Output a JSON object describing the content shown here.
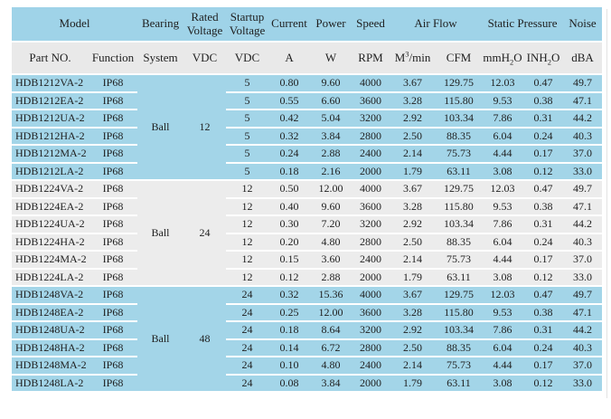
{
  "colors": {
    "header_blue": "#9fd3e8",
    "row_blue": "#a3d5e8",
    "row_gray": "#ececec",
    "header_gray": "#e9e9e9",
    "text": "#1f1f1f"
  },
  "header": {
    "row1": {
      "model": "Model",
      "bearing": "Bearing",
      "rated_voltage": "Rated Voltage",
      "startup_voltage": "Startup Voltage",
      "current": "Current",
      "power": "Power",
      "speed": "Speed",
      "air_flow": "Air Flow",
      "static_pressure": "Static Pressure",
      "noise": "Noise"
    },
    "row2": {
      "part_no": "Part NO.",
      "function": "Function",
      "system": "System",
      "rated_vdc": "VDC",
      "startup_vdc": "VDC",
      "current_a": "A",
      "power_w": "W",
      "speed_rpm": "RPM",
      "m3min": {
        "base": "M",
        "sup": "3",
        "rest": "/min"
      },
      "cfm": "CFM",
      "mmh2o": {
        "base": "mmH",
        "sub": "2",
        "rest": "O"
      },
      "inh2o": {
        "base": "INH",
        "sub": "2",
        "rest": "O"
      },
      "dba": "dBA"
    }
  },
  "groups": [
    {
      "bearing_system": "Ball",
      "rated_voltage": "12",
      "tone": "blue",
      "rows": [
        {
          "part_no": "HDB1212VA-2",
          "function": "IP68",
          "startup_voltage": "5",
          "current": "0.80",
          "power": "9.60",
          "speed": "4000",
          "airflow_m3min": "3.67",
          "airflow_cfm": "129.75",
          "pressure_mmh2o": "12.03",
          "pressure_inh2o": "0.47",
          "noise_dba": "49.7"
        },
        {
          "part_no": "HDB1212EA-2",
          "function": "IP68",
          "startup_voltage": "5",
          "current": "0.55",
          "power": "6.60",
          "speed": "3600",
          "airflow_m3min": "3.28",
          "airflow_cfm": "115.80",
          "pressure_mmh2o": "9.53",
          "pressure_inh2o": "0.38",
          "noise_dba": "47.1"
        },
        {
          "part_no": "HDB1212UA-2",
          "function": "IP68",
          "startup_voltage": "5",
          "current": "0.42",
          "power": "5.04",
          "speed": "3200",
          "airflow_m3min": "2.92",
          "airflow_cfm": "103.34",
          "pressure_mmh2o": "7.86",
          "pressure_inh2o": "0.31",
          "noise_dba": "44.2"
        },
        {
          "part_no": "HDB1212HA-2",
          "function": "IP68",
          "startup_voltage": "5",
          "current": "0.32",
          "power": "3.84",
          "speed": "2800",
          "airflow_m3min": "2.50",
          "airflow_cfm": "88.35",
          "pressure_mmh2o": "6.04",
          "pressure_inh2o": "0.24",
          "noise_dba": "40.3"
        },
        {
          "part_no": "HDB1212MA-2",
          "function": "IP68",
          "startup_voltage": "5",
          "current": "0.24",
          "power": "2.88",
          "speed": "2400",
          "airflow_m3min": "2.14",
          "airflow_cfm": "75.73",
          "pressure_mmh2o": "4.44",
          "pressure_inh2o": "0.17",
          "noise_dba": "37.0"
        },
        {
          "part_no": "HDB1212LA-2",
          "function": "IP68",
          "startup_voltage": "5",
          "current": "0.18",
          "power": "2.16",
          "speed": "2000",
          "airflow_m3min": "1.79",
          "airflow_cfm": "63.11",
          "pressure_mmh2o": "3.08",
          "pressure_inh2o": "0.12",
          "noise_dba": "33.0"
        }
      ]
    },
    {
      "bearing_system": "Ball",
      "rated_voltage": "24",
      "tone": "gray",
      "rows": [
        {
          "part_no": "HDB1224VA-2",
          "function": "IP68",
          "startup_voltage": "12",
          "current": "0.50",
          "power": "12.00",
          "speed": "4000",
          "airflow_m3min": "3.67",
          "airflow_cfm": "129.75",
          "pressure_mmh2o": "12.03",
          "pressure_inh2o": "0.47",
          "noise_dba": "49.7"
        },
        {
          "part_no": "HDB1224EA-2",
          "function": "IP68",
          "startup_voltage": "12",
          "current": "0.40",
          "power": "9.60",
          "speed": "3600",
          "airflow_m3min": "3.28",
          "airflow_cfm": "115.80",
          "pressure_mmh2o": "9.53",
          "pressure_inh2o": "0.38",
          "noise_dba": "47.1"
        },
        {
          "part_no": "HDB1224UA-2",
          "function": "IP68",
          "startup_voltage": "12",
          "current": "0.30",
          "power": "7.20",
          "speed": "3200",
          "airflow_m3min": "2.92",
          "airflow_cfm": "103.34",
          "pressure_mmh2o": "7.86",
          "pressure_inh2o": "0.31",
          "noise_dba": "44.2"
        },
        {
          "part_no": "HDB1224HA-2",
          "function": "IP68",
          "startup_voltage": "12",
          "current": "0.20",
          "power": "4.80",
          "speed": "2800",
          "airflow_m3min": "2.50",
          "airflow_cfm": "88.35",
          "pressure_mmh2o": "6.04",
          "pressure_inh2o": "0.24",
          "noise_dba": "40.3"
        },
        {
          "part_no": "HDB1224MA-2",
          "function": "IP68",
          "startup_voltage": "12",
          "current": "0.15",
          "power": "3.60",
          "speed": "2400",
          "airflow_m3min": "2.14",
          "airflow_cfm": "75.73",
          "pressure_mmh2o": "4.44",
          "pressure_inh2o": "0.17",
          "noise_dba": "37.0"
        },
        {
          "part_no": "HDB1224LA-2",
          "function": "IP68",
          "startup_voltage": "12",
          "current": "0.12",
          "power": "2.88",
          "speed": "2000",
          "airflow_m3min": "1.79",
          "airflow_cfm": "63.11",
          "pressure_mmh2o": "3.08",
          "pressure_inh2o": "0.12",
          "noise_dba": "33.0"
        }
      ]
    },
    {
      "bearing_system": "Ball",
      "rated_voltage": "48",
      "tone": "blue",
      "rows": [
        {
          "part_no": "HDB1248VA-2",
          "function": "IP68",
          "startup_voltage": "24",
          "current": "0.32",
          "power": "15.36",
          "speed": "4000",
          "airflow_m3min": "3.67",
          "airflow_cfm": "129.75",
          "pressure_mmh2o": "12.03",
          "pressure_inh2o": "0.47",
          "noise_dba": "49.7"
        },
        {
          "part_no": "HDB1248EA-2",
          "function": "IP68",
          "startup_voltage": "24",
          "current": "0.25",
          "power": "12.00",
          "speed": "3600",
          "airflow_m3min": "3.28",
          "airflow_cfm": "115.80",
          "pressure_mmh2o": "9.53",
          "pressure_inh2o": "0.38",
          "noise_dba": "47.1"
        },
        {
          "part_no": "HDB1248UA-2",
          "function": "IP68",
          "startup_voltage": "24",
          "current": "0.18",
          "power": "8.64",
          "speed": "3200",
          "airflow_m3min": "2.92",
          "airflow_cfm": "103.34",
          "pressure_mmh2o": "7.86",
          "pressure_inh2o": "0.31",
          "noise_dba": "44.2"
        },
        {
          "part_no": "HDB1248HA-2",
          "function": "IP68",
          "startup_voltage": "24",
          "current": "0.14",
          "power": "6.72",
          "speed": "2800",
          "airflow_m3min": "2.50",
          "airflow_cfm": "88.35",
          "pressure_mmh2o": "6.04",
          "pressure_inh2o": "0.24",
          "noise_dba": "40.3"
        },
        {
          "part_no": "HDB1248MA-2",
          "function": "IP68",
          "startup_voltage": "24",
          "current": "0.10",
          "power": "4.80",
          "speed": "2400",
          "airflow_m3min": "2.14",
          "airflow_cfm": "75.73",
          "pressure_mmh2o": "4.44",
          "pressure_inh2o": "0.17",
          "noise_dba": "37.0"
        },
        {
          "part_no": "HDB1248LA-2",
          "function": "IP68",
          "startup_voltage": "24",
          "current": "0.08",
          "power": "3.84",
          "speed": "2000",
          "airflow_m3min": "1.79",
          "airflow_cfm": "63.11",
          "pressure_mmh2o": "3.08",
          "pressure_inh2o": "0.12",
          "noise_dba": "33.0"
        }
      ]
    }
  ]
}
